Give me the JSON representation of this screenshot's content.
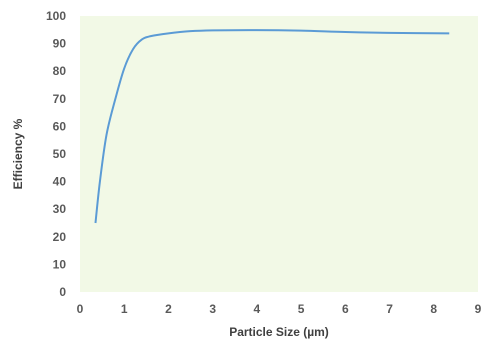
{
  "chart_data": {
    "type": "line",
    "xlabel": "Particle Size (µm)",
    "ylabel": "Efficiency %",
    "xlim": [
      0,
      9
    ],
    "ylim": [
      0,
      100
    ],
    "x_ticks": [
      "0",
      "1",
      "2",
      "3",
      "4",
      "5",
      "6",
      "7",
      "8",
      "9"
    ],
    "y_ticks": [
      "0",
      "10",
      "20",
      "30",
      "40",
      "50",
      "60",
      "70",
      "80",
      "90",
      "100"
    ],
    "grid": "none",
    "legend": "none",
    "colors": {
      "plot_background": "#f2f9e6",
      "line": "#5b9bd5",
      "tick_text": "#595959"
    },
    "series": [
      {
        "x": [
          0.35,
          0.45,
          0.6,
          0.8,
          1.0,
          1.2,
          1.4,
          1.6,
          2.0,
          2.5,
          3.0,
          4.0,
          5.0,
          6.0,
          7.0,
          8.35
        ],
        "y": [
          25,
          40,
          57,
          70,
          81,
          88,
          91.5,
          92.7,
          93.7,
          94.5,
          94.8,
          94.9,
          94.7,
          94.2,
          93.9,
          93.7
        ]
      }
    ]
  }
}
